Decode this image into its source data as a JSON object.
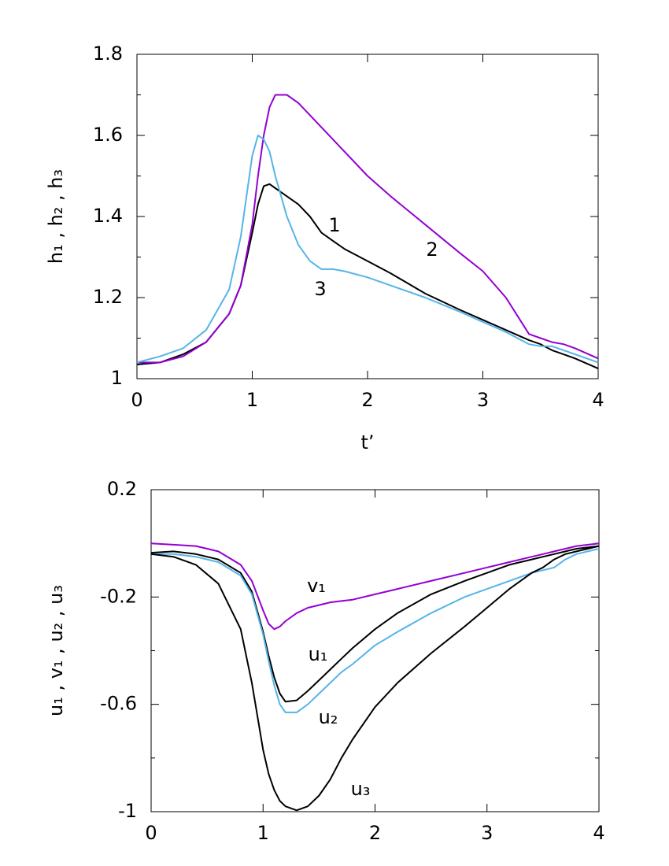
{
  "chart_data": [
    {
      "type": "line",
      "xlabel": "t’",
      "ylabel": "h₁ , h₂ , h₃",
      "xlim": [
        0,
        4
      ],
      "xticks": [
        0,
        1,
        2,
        3,
        4
      ],
      "ylim": [
        1,
        1.8
      ],
      "yticks": [
        1,
        1.2,
        1.4,
        1.6,
        1.8
      ],
      "yminorticks": [
        1.1,
        1.3,
        1.5,
        1.7
      ],
      "x": [
        0,
        0.2,
        0.4,
        0.6,
        0.8,
        0.9,
        1.0,
        1.05,
        1.1,
        1.15,
        1.2,
        1.3,
        1.4,
        1.5,
        1.6,
        1.7,
        1.8,
        2.0,
        2.2,
        2.5,
        2.8,
        3.0,
        3.2,
        3.4,
        3.5,
        3.6,
        3.7,
        3.8,
        4.0
      ],
      "series": [
        {
          "name": "1",
          "color": "#000000",
          "values": [
            1.035,
            1.04,
            1.06,
            1.09,
            1.16,
            1.23,
            1.36,
            1.43,
            1.475,
            1.48,
            1.47,
            1.45,
            1.43,
            1.4,
            1.36,
            1.34,
            1.32,
            1.29,
            1.26,
            1.21,
            1.17,
            1.145,
            1.12,
            1.095,
            1.085,
            1.07,
            1.06,
            1.05,
            1.025
          ]
        },
        {
          "name": "2",
          "color": "#9400d3",
          "values": [
            1.04,
            1.04,
            1.055,
            1.09,
            1.16,
            1.23,
            1.38,
            1.5,
            1.6,
            1.67,
            1.7,
            1.7,
            1.68,
            1.65,
            1.62,
            1.59,
            1.56,
            1.5,
            1.45,
            1.38,
            1.31,
            1.265,
            1.2,
            1.11,
            1.1,
            1.09,
            1.085,
            1.075,
            1.05
          ]
        },
        {
          "name": "3",
          "color": "#56b4e9",
          "values": [
            1.04,
            1.055,
            1.075,
            1.12,
            1.22,
            1.35,
            1.55,
            1.6,
            1.59,
            1.56,
            1.5,
            1.4,
            1.33,
            1.29,
            1.27,
            1.27,
            1.265,
            1.25,
            1.23,
            1.2,
            1.165,
            1.14,
            1.115,
            1.085,
            1.08,
            1.08,
            1.07,
            1.06,
            1.04
          ]
        }
      ]
    },
    {
      "type": "line",
      "ylabel": "u₁ , v₁ , u₂ , u₃",
      "xlim": [
        0,
        4
      ],
      "xticks": [
        0,
        1,
        2,
        3,
        4
      ],
      "ylim": [
        -1,
        0.2
      ],
      "yticks": [
        -1,
        -0.6,
        -0.2,
        0.2
      ],
      "yminorticks": [
        -0.8,
        -0.4,
        0
      ],
      "x": [
        0,
        0.2,
        0.4,
        0.6,
        0.8,
        0.9,
        1.0,
        1.05,
        1.1,
        1.15,
        1.2,
        1.3,
        1.4,
        1.5,
        1.6,
        1.7,
        1.8,
        2.0,
        2.2,
        2.5,
        2.8,
        3.0,
        3.2,
        3.4,
        3.5,
        3.6,
        3.7,
        3.8,
        4.0
      ],
      "series": [
        {
          "name": "v₁",
          "color": "#9400d3",
          "values": [
            0.0,
            -0.005,
            -0.01,
            -0.03,
            -0.08,
            -0.14,
            -0.25,
            -0.3,
            -0.32,
            -0.31,
            -0.29,
            -0.26,
            -0.24,
            -0.23,
            -0.22,
            -0.215,
            -0.21,
            -0.19,
            -0.17,
            -0.14,
            -0.11,
            -0.09,
            -0.07,
            -0.05,
            -0.04,
            -0.03,
            -0.02,
            -0.01,
            0.0
          ]
        },
        {
          "name": "u₁",
          "color": "#000000",
          "values": [
            -0.035,
            -0.03,
            -0.04,
            -0.06,
            -0.11,
            -0.18,
            -0.33,
            -0.42,
            -0.5,
            -0.56,
            -0.59,
            -0.585,
            -0.55,
            -0.51,
            -0.47,
            -0.43,
            -0.39,
            -0.32,
            -0.26,
            -0.19,
            -0.14,
            -0.11,
            -0.08,
            -0.06,
            -0.05,
            -0.04,
            -0.03,
            -0.02,
            -0.01
          ]
        },
        {
          "name": "u₂",
          "color": "#56b4e9",
          "values": [
            -0.04,
            -0.04,
            -0.05,
            -0.07,
            -0.12,
            -0.19,
            -0.34,
            -0.44,
            -0.53,
            -0.6,
            -0.63,
            -0.63,
            -0.6,
            -0.56,
            -0.52,
            -0.48,
            -0.45,
            -0.38,
            -0.33,
            -0.26,
            -0.2,
            -0.17,
            -0.14,
            -0.11,
            -0.1,
            -0.09,
            -0.06,
            -0.04,
            -0.02
          ]
        },
        {
          "name": "u₃",
          "color": "#000000",
          "values": [
            -0.04,
            -0.05,
            -0.08,
            -0.15,
            -0.32,
            -0.52,
            -0.77,
            -0.86,
            -0.92,
            -0.96,
            -0.98,
            -0.995,
            -0.98,
            -0.94,
            -0.88,
            -0.8,
            -0.73,
            -0.61,
            -0.52,
            -0.41,
            -0.31,
            -0.24,
            -0.17,
            -0.11,
            -0.09,
            -0.06,
            -0.04,
            -0.03,
            -0.01
          ]
        }
      ]
    }
  ]
}
